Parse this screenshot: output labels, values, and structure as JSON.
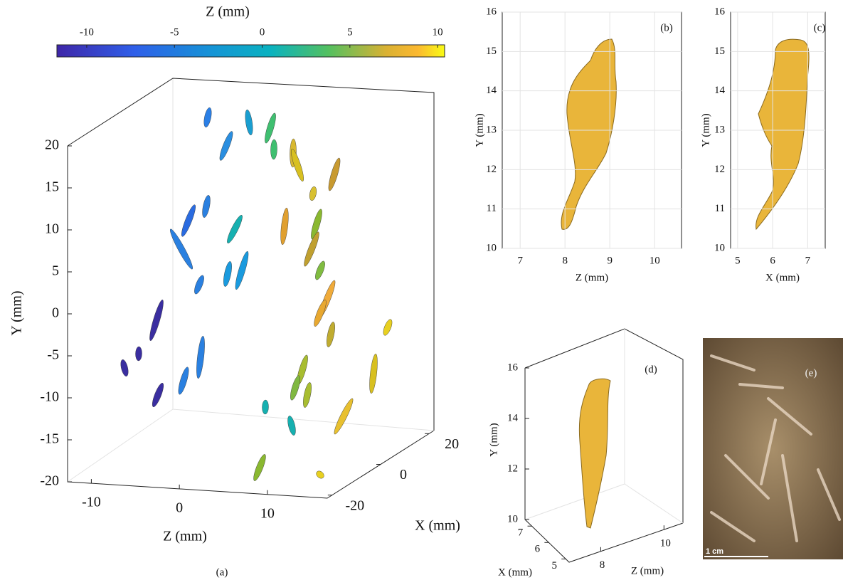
{
  "figure": {
    "colorbar": {
      "label": "Z (mm)",
      "lim": [
        -11.7,
        10.4
      ],
      "ticks": [
        -10,
        -5,
        0,
        5,
        10
      ]
    },
    "panels": [
      {
        "tag": "(a)",
        "xlabel": "Z (mm)",
        "ylabel": "Y (mm)",
        "zlabel": "X (mm)",
        "ylim": [
          -20,
          20
        ],
        "yticks": [
          20,
          15,
          10,
          5,
          0,
          -5,
          -10,
          -15,
          -20
        ],
        "xlim": [
          -12.7,
          16.8
        ],
        "xticks": [
          -10,
          0,
          10
        ],
        "zlim": [
          -22,
          22
        ],
        "zticks": [
          20,
          0,
          -20
        ]
      },
      {
        "tag": "(b)",
        "xlabel": "Z (mm)",
        "ylabel": "Y (mm)",
        "xlim": [
          6.6,
          10.6
        ],
        "xticks": [
          7,
          8,
          9,
          10
        ],
        "ylim": [
          10,
          16
        ],
        "yticks": [
          10,
          11,
          12,
          13,
          14,
          15,
          16
        ]
      },
      {
        "tag": "(c)",
        "xlabel": "X (mm)",
        "ylabel": "Y (mm)",
        "xlim": [
          4.8,
          7.5
        ],
        "xticks": [
          5,
          6,
          7
        ],
        "ylim": [
          10,
          16
        ],
        "yticks": [
          10,
          11,
          12,
          13,
          14,
          15,
          16
        ]
      },
      {
        "tag": "(d)",
        "xlabel": "Z (mm)",
        "ylabel": "Y (mm)",
        "zlabel": "X (mm)",
        "ylim": [
          10,
          16
        ],
        "yticks": [
          10,
          12,
          14,
          16
        ],
        "xlim": [
          7,
          10.6
        ],
        "xticks": [
          8,
          10
        ],
        "zlim": [
          7.4,
          4.8
        ],
        "zticks": [
          7,
          6,
          5
        ]
      },
      {
        "tag": "(e)",
        "scale_label": "1 cm"
      }
    ]
  }
}
